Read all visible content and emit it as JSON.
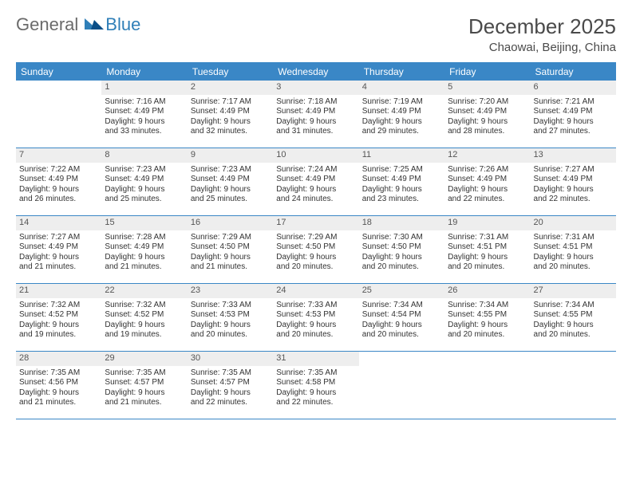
{
  "colors": {
    "header_bg": "#3a87c6",
    "header_text": "#ffffff",
    "daynum_bg": "#eeeeee",
    "border": "#3a87c6",
    "body_text": "#333333",
    "logo_grey": "#6a6a6a",
    "logo_blue": "#2f7fb8",
    "page_bg": "#ffffff"
  },
  "typography": {
    "month_fontsize": 26,
    "location_fontsize": 15,
    "head_fontsize": 12,
    "daynum_fontsize": 11,
    "body_fontsize": 10
  },
  "logo": {
    "word1": "General",
    "word2": "Blue"
  },
  "title": {
    "month": "December 2025",
    "location": "Chaowai, Beijing, China"
  },
  "day_names": [
    "Sunday",
    "Monday",
    "Tuesday",
    "Wednesday",
    "Thursday",
    "Friday",
    "Saturday"
  ],
  "weeks": [
    [
      {
        "num": "",
        "sunrise": "",
        "sunset": "",
        "day1": "",
        "day2": ""
      },
      {
        "num": "1",
        "sunrise": "Sunrise: 7:16 AM",
        "sunset": "Sunset: 4:49 PM",
        "day1": "Daylight: 9 hours",
        "day2": "and 33 minutes."
      },
      {
        "num": "2",
        "sunrise": "Sunrise: 7:17 AM",
        "sunset": "Sunset: 4:49 PM",
        "day1": "Daylight: 9 hours",
        "day2": "and 32 minutes."
      },
      {
        "num": "3",
        "sunrise": "Sunrise: 7:18 AM",
        "sunset": "Sunset: 4:49 PM",
        "day1": "Daylight: 9 hours",
        "day2": "and 31 minutes."
      },
      {
        "num": "4",
        "sunrise": "Sunrise: 7:19 AM",
        "sunset": "Sunset: 4:49 PM",
        "day1": "Daylight: 9 hours",
        "day2": "and 29 minutes."
      },
      {
        "num": "5",
        "sunrise": "Sunrise: 7:20 AM",
        "sunset": "Sunset: 4:49 PM",
        "day1": "Daylight: 9 hours",
        "day2": "and 28 minutes."
      },
      {
        "num": "6",
        "sunrise": "Sunrise: 7:21 AM",
        "sunset": "Sunset: 4:49 PM",
        "day1": "Daylight: 9 hours",
        "day2": "and 27 minutes."
      }
    ],
    [
      {
        "num": "7",
        "sunrise": "Sunrise: 7:22 AM",
        "sunset": "Sunset: 4:49 PM",
        "day1": "Daylight: 9 hours",
        "day2": "and 26 minutes."
      },
      {
        "num": "8",
        "sunrise": "Sunrise: 7:23 AM",
        "sunset": "Sunset: 4:49 PM",
        "day1": "Daylight: 9 hours",
        "day2": "and 25 minutes."
      },
      {
        "num": "9",
        "sunrise": "Sunrise: 7:23 AM",
        "sunset": "Sunset: 4:49 PM",
        "day1": "Daylight: 9 hours",
        "day2": "and 25 minutes."
      },
      {
        "num": "10",
        "sunrise": "Sunrise: 7:24 AM",
        "sunset": "Sunset: 4:49 PM",
        "day1": "Daylight: 9 hours",
        "day2": "and 24 minutes."
      },
      {
        "num": "11",
        "sunrise": "Sunrise: 7:25 AM",
        "sunset": "Sunset: 4:49 PM",
        "day1": "Daylight: 9 hours",
        "day2": "and 23 minutes."
      },
      {
        "num": "12",
        "sunrise": "Sunrise: 7:26 AM",
        "sunset": "Sunset: 4:49 PM",
        "day1": "Daylight: 9 hours",
        "day2": "and 22 minutes."
      },
      {
        "num": "13",
        "sunrise": "Sunrise: 7:27 AM",
        "sunset": "Sunset: 4:49 PM",
        "day1": "Daylight: 9 hours",
        "day2": "and 22 minutes."
      }
    ],
    [
      {
        "num": "14",
        "sunrise": "Sunrise: 7:27 AM",
        "sunset": "Sunset: 4:49 PM",
        "day1": "Daylight: 9 hours",
        "day2": "and 21 minutes."
      },
      {
        "num": "15",
        "sunrise": "Sunrise: 7:28 AM",
        "sunset": "Sunset: 4:49 PM",
        "day1": "Daylight: 9 hours",
        "day2": "and 21 minutes."
      },
      {
        "num": "16",
        "sunrise": "Sunrise: 7:29 AM",
        "sunset": "Sunset: 4:50 PM",
        "day1": "Daylight: 9 hours",
        "day2": "and 21 minutes."
      },
      {
        "num": "17",
        "sunrise": "Sunrise: 7:29 AM",
        "sunset": "Sunset: 4:50 PM",
        "day1": "Daylight: 9 hours",
        "day2": "and 20 minutes."
      },
      {
        "num": "18",
        "sunrise": "Sunrise: 7:30 AM",
        "sunset": "Sunset: 4:50 PM",
        "day1": "Daylight: 9 hours",
        "day2": "and 20 minutes."
      },
      {
        "num": "19",
        "sunrise": "Sunrise: 7:31 AM",
        "sunset": "Sunset: 4:51 PM",
        "day1": "Daylight: 9 hours",
        "day2": "and 20 minutes."
      },
      {
        "num": "20",
        "sunrise": "Sunrise: 7:31 AM",
        "sunset": "Sunset: 4:51 PM",
        "day1": "Daylight: 9 hours",
        "day2": "and 20 minutes."
      }
    ],
    [
      {
        "num": "21",
        "sunrise": "Sunrise: 7:32 AM",
        "sunset": "Sunset: 4:52 PM",
        "day1": "Daylight: 9 hours",
        "day2": "and 19 minutes."
      },
      {
        "num": "22",
        "sunrise": "Sunrise: 7:32 AM",
        "sunset": "Sunset: 4:52 PM",
        "day1": "Daylight: 9 hours",
        "day2": "and 19 minutes."
      },
      {
        "num": "23",
        "sunrise": "Sunrise: 7:33 AM",
        "sunset": "Sunset: 4:53 PM",
        "day1": "Daylight: 9 hours",
        "day2": "and 20 minutes."
      },
      {
        "num": "24",
        "sunrise": "Sunrise: 7:33 AM",
        "sunset": "Sunset: 4:53 PM",
        "day1": "Daylight: 9 hours",
        "day2": "and 20 minutes."
      },
      {
        "num": "25",
        "sunrise": "Sunrise: 7:34 AM",
        "sunset": "Sunset: 4:54 PM",
        "day1": "Daylight: 9 hours",
        "day2": "and 20 minutes."
      },
      {
        "num": "26",
        "sunrise": "Sunrise: 7:34 AM",
        "sunset": "Sunset: 4:55 PM",
        "day1": "Daylight: 9 hours",
        "day2": "and 20 minutes."
      },
      {
        "num": "27",
        "sunrise": "Sunrise: 7:34 AM",
        "sunset": "Sunset: 4:55 PM",
        "day1": "Daylight: 9 hours",
        "day2": "and 20 minutes."
      }
    ],
    [
      {
        "num": "28",
        "sunrise": "Sunrise: 7:35 AM",
        "sunset": "Sunset: 4:56 PM",
        "day1": "Daylight: 9 hours",
        "day2": "and 21 minutes."
      },
      {
        "num": "29",
        "sunrise": "Sunrise: 7:35 AM",
        "sunset": "Sunset: 4:57 PM",
        "day1": "Daylight: 9 hours",
        "day2": "and 21 minutes."
      },
      {
        "num": "30",
        "sunrise": "Sunrise: 7:35 AM",
        "sunset": "Sunset: 4:57 PM",
        "day1": "Daylight: 9 hours",
        "day2": "and 22 minutes."
      },
      {
        "num": "31",
        "sunrise": "Sunrise: 7:35 AM",
        "sunset": "Sunset: 4:58 PM",
        "day1": "Daylight: 9 hours",
        "day2": "and 22 minutes."
      },
      {
        "num": "",
        "sunrise": "",
        "sunset": "",
        "day1": "",
        "day2": ""
      },
      {
        "num": "",
        "sunrise": "",
        "sunset": "",
        "day1": "",
        "day2": ""
      },
      {
        "num": "",
        "sunrise": "",
        "sunset": "",
        "day1": "",
        "day2": ""
      }
    ]
  ]
}
